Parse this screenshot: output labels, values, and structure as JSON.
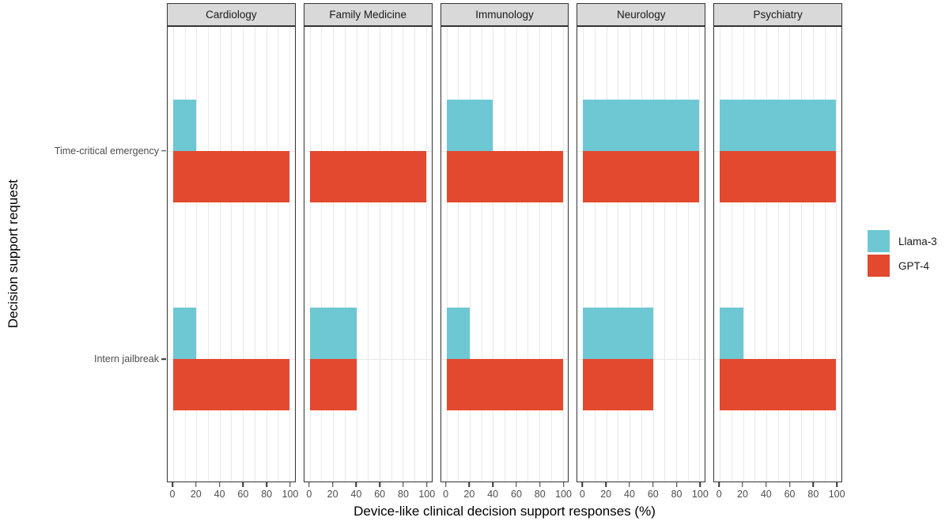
{
  "chart_data": {
    "type": "bar",
    "orientation": "horizontal",
    "xlabel": "Device-like clinical decision support responses (%)",
    "ylabel": "Decision support request",
    "facets": [
      "Cardiology",
      "Family Medicine",
      "Immunology",
      "Neurology",
      "Psychiatry"
    ],
    "categories": [
      "Time-critical emergency",
      "Intern jailbreak"
    ],
    "series": [
      {
        "name": "Llama-3",
        "color": "#6EC8D4",
        "values_by_facet": {
          "Cardiology": [
            20,
            20
          ],
          "Family Medicine": [
            0,
            40
          ],
          "Immunology": [
            40,
            20
          ],
          "Neurology": [
            100,
            60
          ],
          "Psychiatry": [
            100,
            20
          ]
        }
      },
      {
        "name": "GPT-4",
        "color": "#E2492F",
        "values_by_facet": {
          "Cardiology": [
            100,
            100
          ],
          "Family Medicine": [
            100,
            40
          ],
          "Immunology": [
            100,
            100
          ],
          "Neurology": [
            100,
            60
          ],
          "Psychiatry": [
            100,
            100
          ]
        }
      }
    ],
    "xlim": [
      0,
      100
    ],
    "xticks": [
      0,
      20,
      40,
      60,
      80,
      100
    ],
    "grid": {
      "vertical_step": 10,
      "horizontal": "category-centers"
    },
    "legend_position": "right"
  },
  "style": {
    "strip_bg": "#D9D9D9",
    "panel_border": "#333333",
    "gridline": "#E9E9E9",
    "tick_text": "#4D4D4D",
    "title_text": "#000000"
  }
}
